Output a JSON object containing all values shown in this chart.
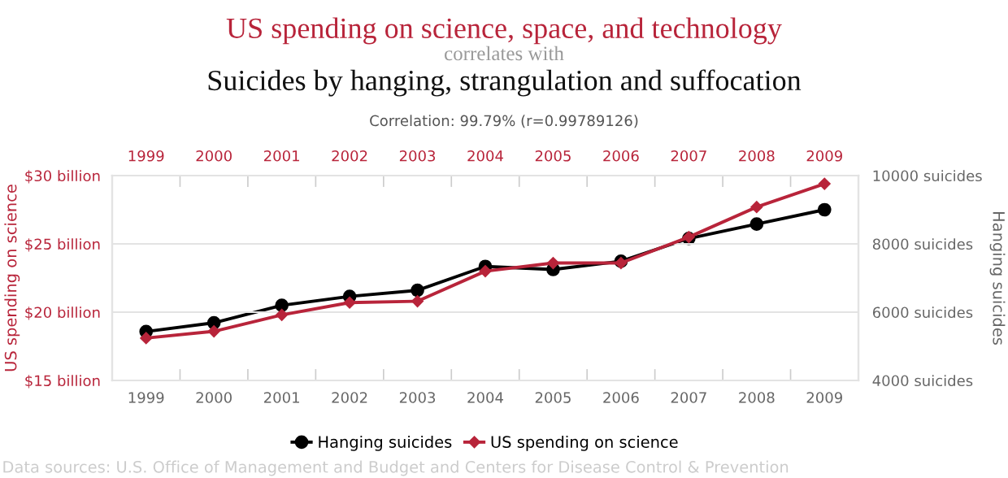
{
  "chart_data": {
    "type": "line",
    "title": "US spending on science, space, and technology",
    "subtitle": "correlates with",
    "annotations": [
      "Suicides by hanging, strangulation and suffocation",
      "Correlation: 99.79% (r=0.99789126)",
      "Data sources: U.S. Office of Management and Budget and Centers for Disease Control & Prevention"
    ],
    "ylabel": "US spending on science",
    "y2label": "Hanging suicides",
    "categories": [
      "1999",
      "2000",
      "2001",
      "2002",
      "2003",
      "2004",
      "2005",
      "2006",
      "2007",
      "2008",
      "2009"
    ],
    "series": [
      {
        "name": "Hanging suicides",
        "color": "#000000",
        "axis": "y2",
        "marker": "circle",
        "values": [
          5430,
          5690,
          6200,
          6460,
          6640,
          7340,
          7250,
          7490,
          8160,
          8580,
          9000
        ]
      },
      {
        "name": "US spending on science",
        "color": "#b8243a",
        "marker": "diamond",
        "values": [
          18.1,
          18.6,
          19.8,
          20.7,
          20.8,
          23.0,
          23.6,
          23.6,
          25.5,
          27.7,
          29.4
        ]
      }
    ],
    "ylim": [
      15,
      30
    ],
    "yticks": [
      {
        "value": 15,
        "label": "$15 billion"
      },
      {
        "value": 20,
        "label": "$20 billion"
      },
      {
        "value": 25,
        "label": "$25 billion"
      },
      {
        "value": 30,
        "label": "$30 billion"
      }
    ],
    "y2lim": [
      4000,
      10000
    ],
    "y2ticks": [
      {
        "value": 4000,
        "label": "4000 suicides"
      },
      {
        "value": 6000,
        "label": "6000 suicides"
      },
      {
        "value": 8000,
        "label": "8000 suicides"
      },
      {
        "value": 10000,
        "label": "10000 suicides"
      }
    ],
    "grid": "y",
    "legend": "bottom",
    "line_style": "solid"
  }
}
